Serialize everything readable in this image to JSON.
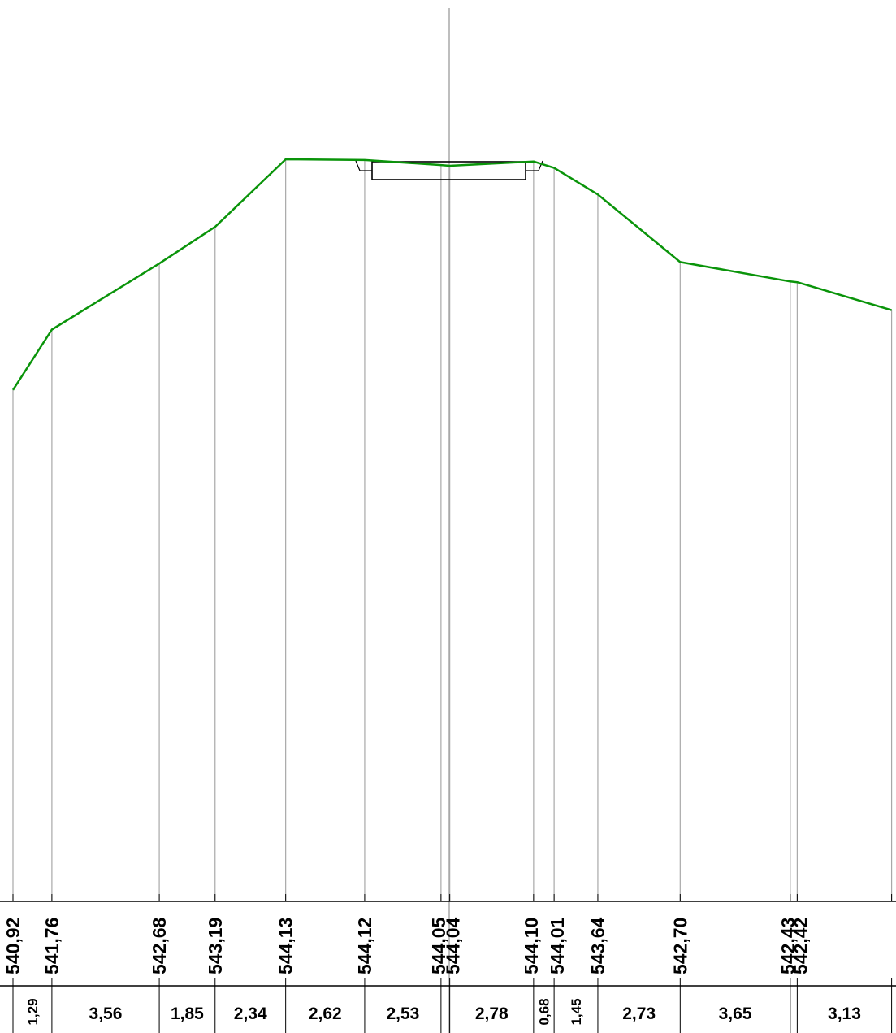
{
  "colors": {
    "terrain": "#0a940a",
    "gridline": "#a8a8a8",
    "structure": "#000000",
    "table_line": "#000000"
  },
  "profile": {
    "points": [
      {
        "offset": 0.0,
        "elev": 540.92
      },
      {
        "offset": 1.29,
        "elev": 541.76
      },
      {
        "offset": 4.85,
        "elev": 542.68
      },
      {
        "offset": 6.7,
        "elev": 543.19
      },
      {
        "offset": 9.04,
        "elev": 544.13
      },
      {
        "offset": 11.66,
        "elev": 544.12
      },
      {
        "offset": 14.19,
        "elev": 544.05
      },
      {
        "offset": 14.48,
        "elev": 544.04
      },
      {
        "offset": 17.26,
        "elev": 544.1
      },
      {
        "offset": 17.94,
        "elev": 544.01
      },
      {
        "offset": 19.39,
        "elev": 543.64
      },
      {
        "offset": 22.12,
        "elev": 542.7
      },
      {
        "offset": 25.77,
        "elev": 542.43
      },
      {
        "offset": 26.0,
        "elev": 542.42
      },
      {
        "offset": 29.13,
        "elev": 542.03
      }
    ],
    "axis_offset": 14.19
  },
  "elevation_labels": [
    "540,92",
    "541,76",
    "542,68",
    "543,19",
    "544,13",
    "544,12",
    "544,05",
    "544,04",
    "544,10",
    "544,01",
    "543,64",
    "542,70",
    "542,43",
    "542,42"
  ],
  "distance_labels": [
    {
      "text": "1,29",
      "from": 0.0,
      "to": 1.29,
      "rotated": true
    },
    {
      "text": "3,56",
      "from": 1.29,
      "to": 4.85,
      "rotated": false
    },
    {
      "text": "1,85",
      "from": 4.85,
      "to": 6.7,
      "rotated": false
    },
    {
      "text": "2,34",
      "from": 6.7,
      "to": 9.04,
      "rotated": false
    },
    {
      "text": "2,62",
      "from": 9.04,
      "to": 11.66,
      "rotated": false
    },
    {
      "text": "2,53",
      "from": 11.66,
      "to": 14.19,
      "rotated": false
    },
    {
      "text": "2,78",
      "from": 14.48,
      "to": 17.26,
      "rotated": false
    },
    {
      "text": "0,68",
      "from": 17.26,
      "to": 17.94,
      "rotated": true
    },
    {
      "text": "1,45",
      "from": 17.94,
      "to": 19.39,
      "rotated": true
    },
    {
      "text": "2,73",
      "from": 19.39,
      "to": 22.12,
      "rotated": false
    },
    {
      "text": "3,65",
      "from": 22.12,
      "to": 25.77,
      "rotated": false
    },
    {
      "text": "3,13",
      "from": 26.0,
      "to": 29.13,
      "rotated": false
    }
  ]
}
